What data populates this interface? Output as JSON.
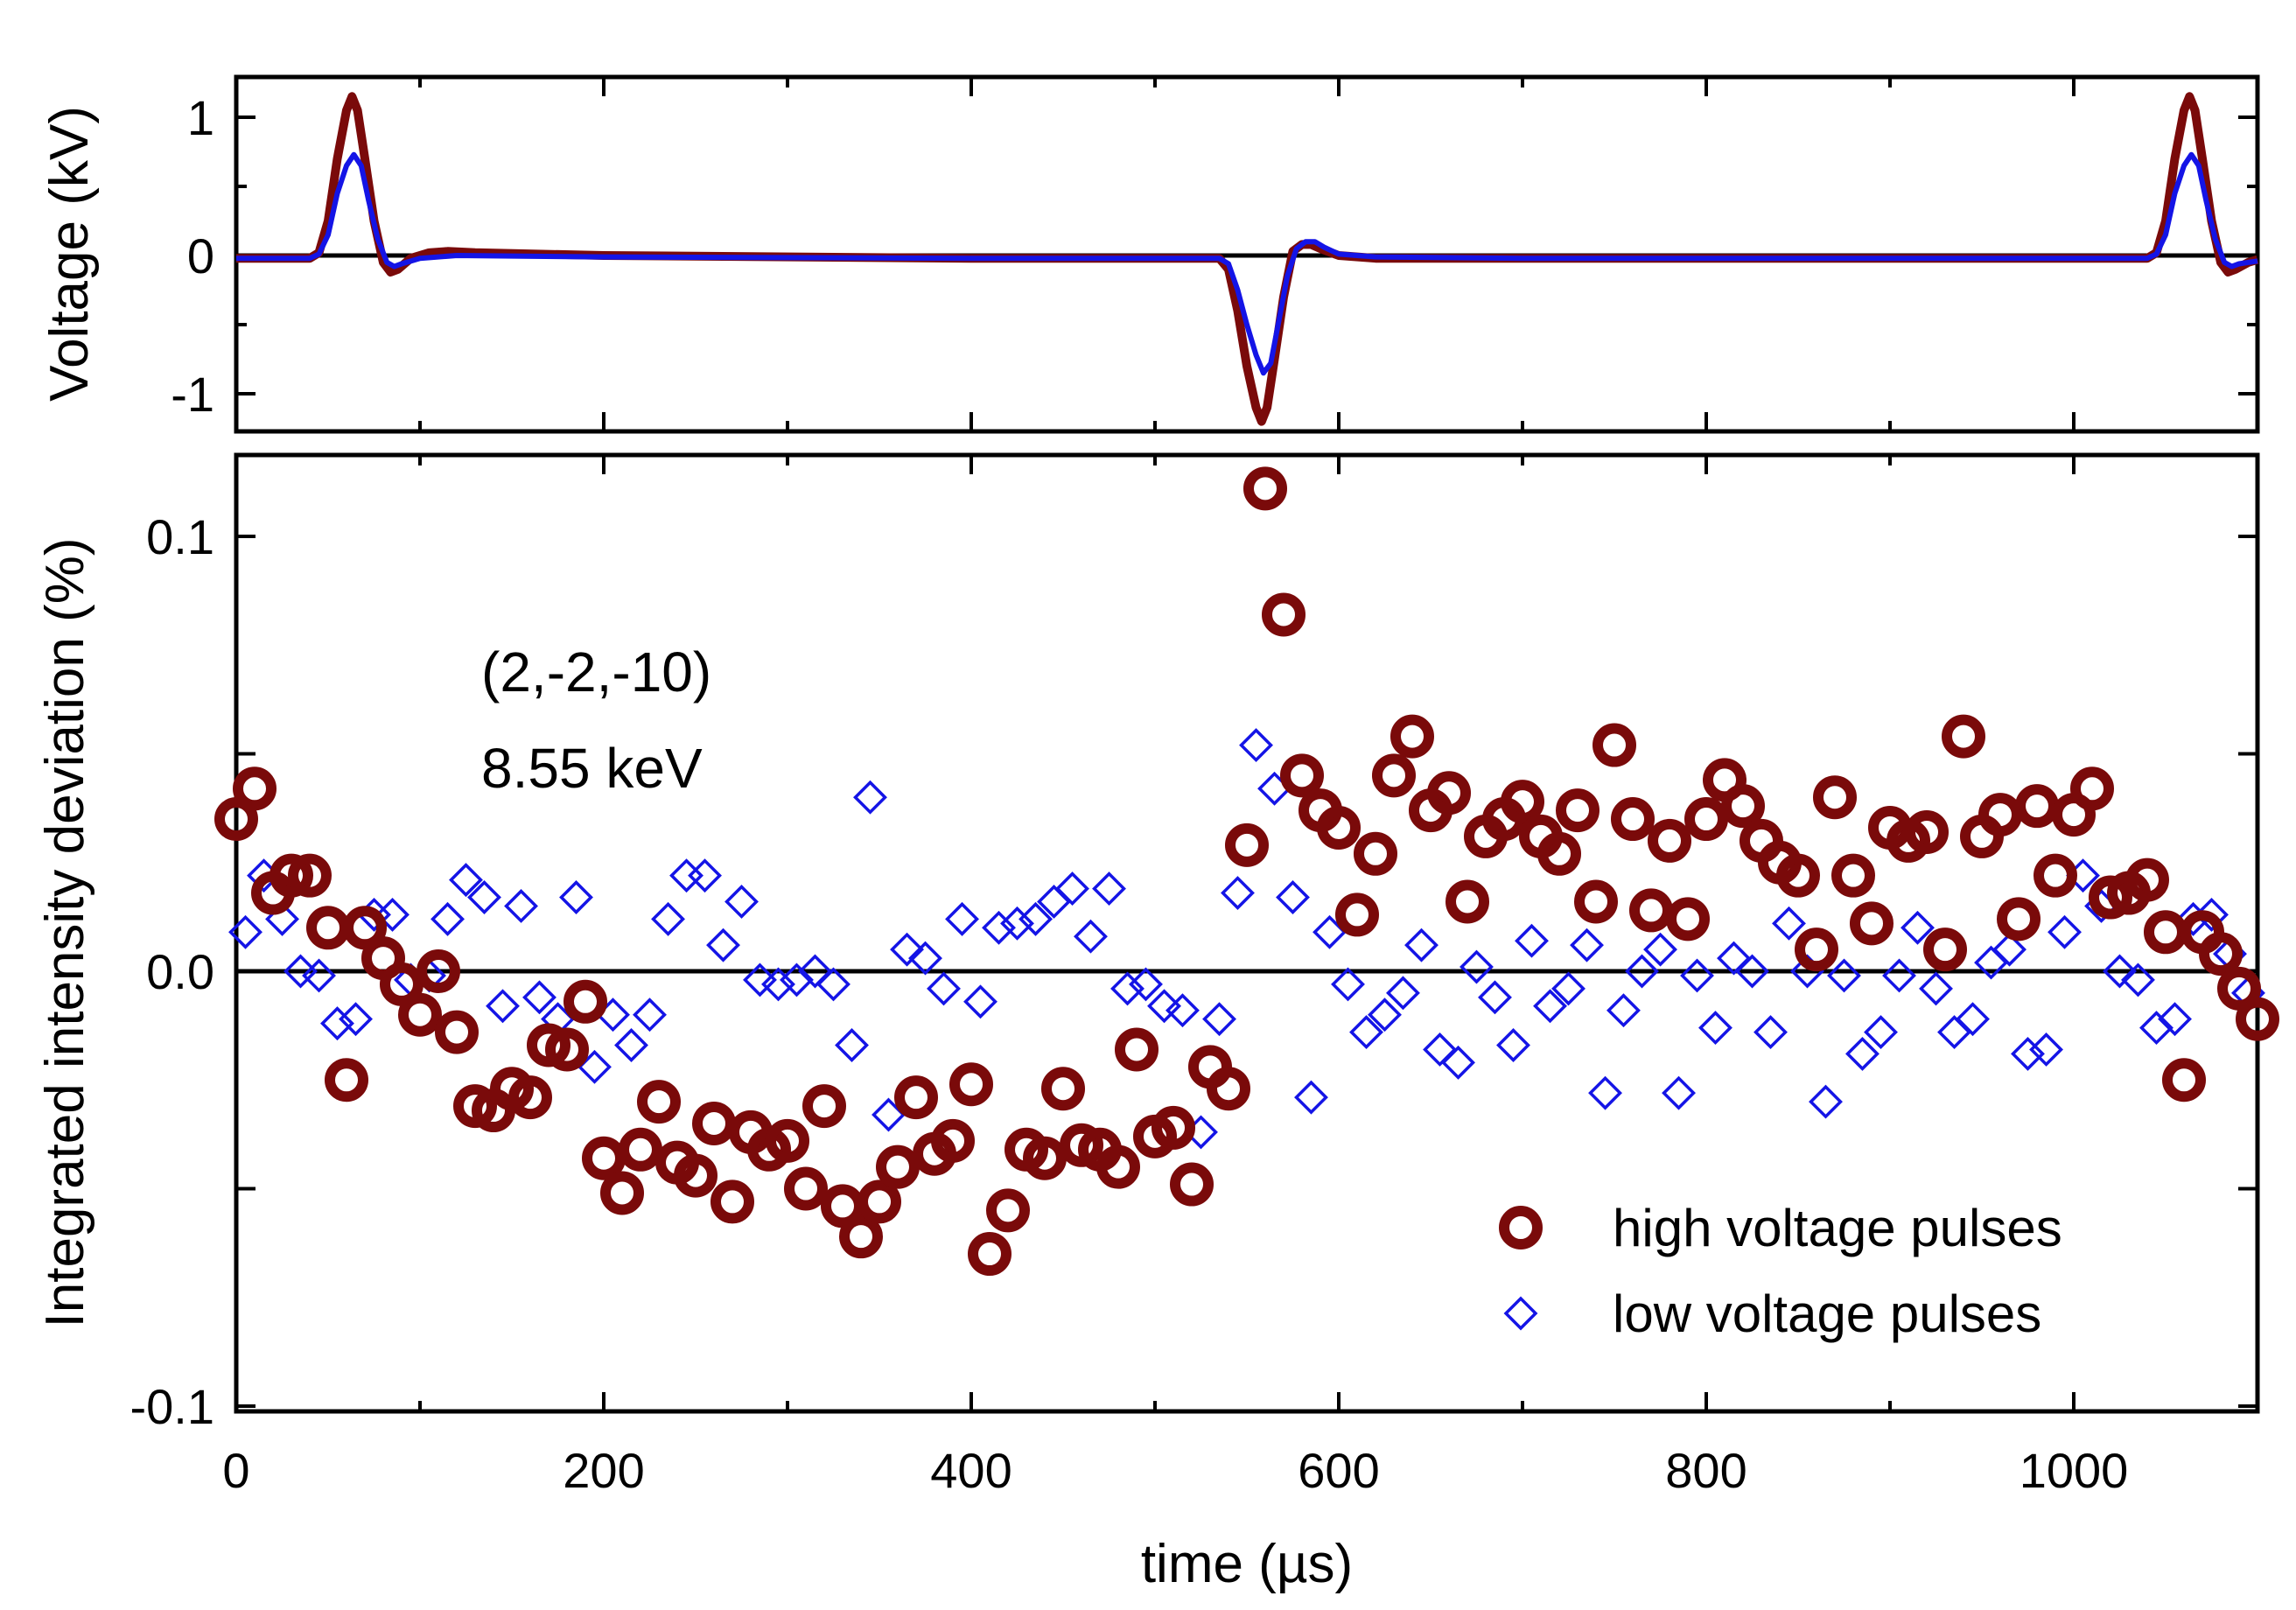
{
  "chart_data": [
    {
      "type": "line",
      "panel": "top",
      "title": "",
      "xlabel": "",
      "ylabel": "Voltage (kV)",
      "xlim": [
        0,
        1100
      ],
      "ylim": [
        -1.25,
        1.25
      ],
      "yticks": [
        1,
        0,
        -1
      ],
      "ytick_labels": [
        "1",
        "0",
        "-1"
      ],
      "series": [
        {
          "name": "high voltage pulses",
          "color": "#7a0a0a",
          "x": [
            0,
            40,
            45,
            50,
            55,
            60,
            63,
            66,
            70,
            75,
            80,
            84,
            88,
            95,
            105,
            115,
            130,
            200,
            400,
            520,
            535,
            540,
            545,
            550,
            555,
            558,
            561,
            565,
            570,
            575,
            580,
            585,
            590,
            600,
            620,
            700,
            900,
            1040,
            1045,
            1050,
            1055,
            1060,
            1063,
            1066,
            1070,
            1075,
            1080,
            1084,
            1088,
            1095,
            1100
          ],
          "y": [
            -0.02,
            -0.02,
            0.02,
            0.25,
            0.7,
            1.05,
            1.15,
            1.05,
            0.7,
            0.25,
            -0.05,
            -0.12,
            -0.1,
            -0.02,
            0.02,
            0.03,
            0.02,
            0.0,
            -0.02,
            -0.02,
            -0.02,
            -0.1,
            -0.4,
            -0.8,
            -1.1,
            -1.2,
            -1.1,
            -0.75,
            -0.3,
            0.03,
            0.08,
            0.08,
            0.05,
            0.0,
            -0.02,
            -0.02,
            -0.02,
            -0.02,
            0.02,
            0.25,
            0.7,
            1.05,
            1.15,
            1.05,
            0.7,
            0.25,
            -0.05,
            -0.12,
            -0.1,
            -0.05,
            -0.03
          ]
        },
        {
          "name": "low voltage pulses",
          "color": "#1414e6",
          "x": [
            0,
            40,
            45,
            50,
            55,
            60,
            64,
            68,
            72,
            77,
            82,
            86,
            90,
            100,
            120,
            200,
            400,
            520,
            535,
            540,
            545,
            550,
            555,
            559,
            563,
            567,
            572,
            577,
            582,
            587,
            592,
            600,
            620,
            700,
            900,
            1040,
            1045,
            1050,
            1055,
            1060,
            1064,
            1068,
            1072,
            1077,
            1082,
            1086,
            1090,
            1100
          ],
          "y": [
            -0.02,
            -0.02,
            0.01,
            0.15,
            0.45,
            0.65,
            0.73,
            0.65,
            0.4,
            0.12,
            -0.05,
            -0.08,
            -0.06,
            -0.02,
            0.0,
            -0.01,
            -0.02,
            -0.02,
            -0.02,
            -0.06,
            -0.25,
            -0.5,
            -0.72,
            -0.85,
            -0.78,
            -0.5,
            -0.15,
            0.05,
            0.1,
            0.1,
            0.06,
            0.01,
            -0.01,
            -0.02,
            -0.02,
            -0.02,
            0.01,
            0.15,
            0.45,
            0.65,
            0.73,
            0.65,
            0.4,
            0.12,
            -0.05,
            -0.08,
            -0.06,
            -0.04
          ]
        }
      ]
    },
    {
      "type": "scatter",
      "panel": "bottom",
      "title": "",
      "xlabel": "time (µs)",
      "ylabel": "Integrated intensity deviation (%)",
      "xlim": [
        0,
        1100
      ],
      "ylim": [
        -0.1,
        0.12
      ],
      "xticks": [
        0,
        200,
        400,
        600,
        800,
        1000
      ],
      "xtick_labels": [
        "0",
        "200",
        "400",
        "600",
        "800",
        "1000"
      ],
      "yticks": [
        0.1,
        0.0,
        -0.1
      ],
      "ytick_labels": [
        "0.1",
        "0.0",
        "-0.1"
      ],
      "legend_position": "bottom-right",
      "series": [
        {
          "name": "high voltage pulses",
          "marker": "circle",
          "color": "#7a0a0a",
          "x": [
            0,
            10,
            20,
            30,
            40,
            50,
            60,
            70,
            80,
            90,
            100,
            110,
            120,
            130,
            140,
            150,
            160,
            170,
            180,
            190,
            200,
            210,
            220,
            230,
            240,
            250,
            260,
            270,
            280,
            290,
            300,
            310,
            320,
            330,
            340,
            350,
            360,
            370,
            380,
            390,
            400,
            410,
            420,
            430,
            440,
            450,
            460,
            470,
            480,
            490,
            500,
            510,
            520,
            530,
            540,
            550,
            560,
            570,
            580,
            590,
            600,
            610,
            620,
            630,
            640,
            650,
            660,
            670,
            680,
            690,
            700,
            710,
            720,
            730,
            740,
            750,
            760,
            770,
            780,
            790,
            800,
            810,
            820,
            830,
            840,
            850,
            860,
            870,
            880,
            890,
            900,
            910,
            920,
            930,
            940,
            950,
            960,
            970,
            980,
            990,
            1000,
            1010,
            1020,
            1030,
            1040,
            1050,
            1060,
            1070,
            1080,
            1090,
            1100
          ],
          "y": [
            0.035,
            0.042,
            0.018,
            0.022,
            0.022,
            0.01,
            -0.025,
            0.01,
            0.003,
            -0.003,
            -0.01,
            0.0,
            -0.014,
            -0.031,
            -0.032,
            -0.027,
            -0.029,
            -0.017,
            -0.018,
            -0.007,
            -0.043,
            -0.051,
            -0.041,
            -0.03,
            -0.044,
            -0.047,
            -0.035,
            -0.053,
            -0.037,
            -0.041,
            -0.039,
            -0.05,
            -0.031,
            -0.054,
            -0.061,
            -0.053,
            -0.045,
            -0.029,
            -0.042,
            -0.039,
            -0.026,
            -0.065,
            -0.055,
            -0.041,
            -0.043,
            -0.027,
            -0.04,
            -0.041,
            -0.045,
            -0.018,
            -0.038,
            -0.036,
            -0.049,
            -0.022,
            -0.027,
            0.029,
            0.111,
            0.082,
            0.045,
            0.037,
            0.033,
            0.013,
            0.027,
            0.045,
            0.054,
            0.037,
            0.041,
            0.016,
            0.031,
            0.035,
            0.039,
            0.031,
            0.027,
            0.037,
            0.016,
            0.052,
            0.035,
            0.014,
            0.03,
            0.012,
            0.035,
            0.044,
            0.038,
            0.03,
            0.025,
            0.022,
            0.005,
            0.04,
            0.022,
            0.011,
            0.033,
            0.03,
            0.032,
            0.005,
            0.054,
            0.031,
            0.036,
            0.012,
            0.038,
            0.022,
            0.036,
            0.042,
            0.017,
            0.018,
            0.021,
            0.009,
            -0.025,
            0.009,
            0.004,
            -0.004,
            -0.011
          ]
        },
        {
          "name": "low voltage pulses",
          "marker": "diamond",
          "color": "#1414e6",
          "x": [
            5,
            15,
            25,
            35,
            45,
            55,
            65,
            75,
            85,
            95,
            105,
            115,
            125,
            135,
            145,
            155,
            165,
            175,
            185,
            195,
            205,
            215,
            225,
            235,
            245,
            255,
            265,
            275,
            285,
            295,
            305,
            315,
            325,
            335,
            345,
            355,
            365,
            375,
            385,
            395,
            405,
            415,
            425,
            435,
            445,
            455,
            465,
            475,
            485,
            495,
            505,
            515,
            525,
            535,
            545,
            555,
            565,
            575,
            585,
            595,
            605,
            615,
            625,
            635,
            645,
            655,
            665,
            675,
            685,
            695,
            705,
            715,
            725,
            735,
            745,
            755,
            765,
            775,
            785,
            795,
            805,
            815,
            825,
            835,
            845,
            855,
            865,
            875,
            885,
            895,
            905,
            915,
            925,
            935,
            945,
            955,
            965,
            975,
            985,
            995,
            1005,
            1015,
            1025,
            1035,
            1045,
            1055,
            1065,
            1075,
            1085,
            1095
          ],
          "y": [
            0.009,
            0.022,
            0.012,
            0.0,
            -0.001,
            -0.012,
            -0.011,
            0.013,
            0.013,
            -0.002,
            -0.001,
            0.012,
            0.021,
            0.017,
            -0.008,
            0.015,
            -0.006,
            -0.011,
            0.017,
            -0.022,
            -0.01,
            -0.017,
            -0.01,
            0.012,
            0.022,
            0.022,
            0.006,
            0.016,
            -0.002,
            -0.003,
            -0.002,
            0.0,
            -0.003,
            -0.017,
            0.04,
            -0.033,
            0.005,
            0.003,
            -0.004,
            0.012,
            -0.007,
            0.01,
            0.011,
            0.012,
            0.016,
            0.019,
            0.008,
            0.019,
            -0.004,
            -0.003,
            -0.008,
            -0.009,
            -0.037,
            -0.011,
            0.018,
            0.052,
            0.042,
            0.017,
            -0.029,
            0.009,
            -0.003,
            -0.014,
            -0.01,
            -0.005,
            0.006,
            -0.018,
            -0.021,
            0.001,
            -0.006,
            -0.017,
            0.007,
            -0.008,
            -0.004,
            0.006,
            -0.028,
            -0.009,
            0.0,
            0.005,
            -0.028,
            -0.001,
            -0.013,
            0.003,
            0.0,
            -0.014,
            0.011,
            0.0,
            -0.03,
            -0.001,
            -0.019,
            -0.014,
            -0.001,
            0.01,
            -0.004,
            -0.014,
            -0.011,
            0.002,
            0.005,
            -0.019,
            -0.018,
            0.009,
            0.022,
            0.015,
            0.0,
            -0.002,
            -0.013,
            -0.011,
            0.012,
            0.013,
            0.004,
            -0.005
          ]
        }
      ]
    }
  ],
  "annotation": {
    "line1": "(2,-2,-10)",
    "line2": "8.55 keV"
  },
  "legend": {
    "items": [
      {
        "label": "high voltage pulses",
        "marker": "circle",
        "color": "#7a0a0a"
      },
      {
        "label": "low voltage pulses",
        "marker": "diamond",
        "color": "#1414e6"
      }
    ]
  }
}
